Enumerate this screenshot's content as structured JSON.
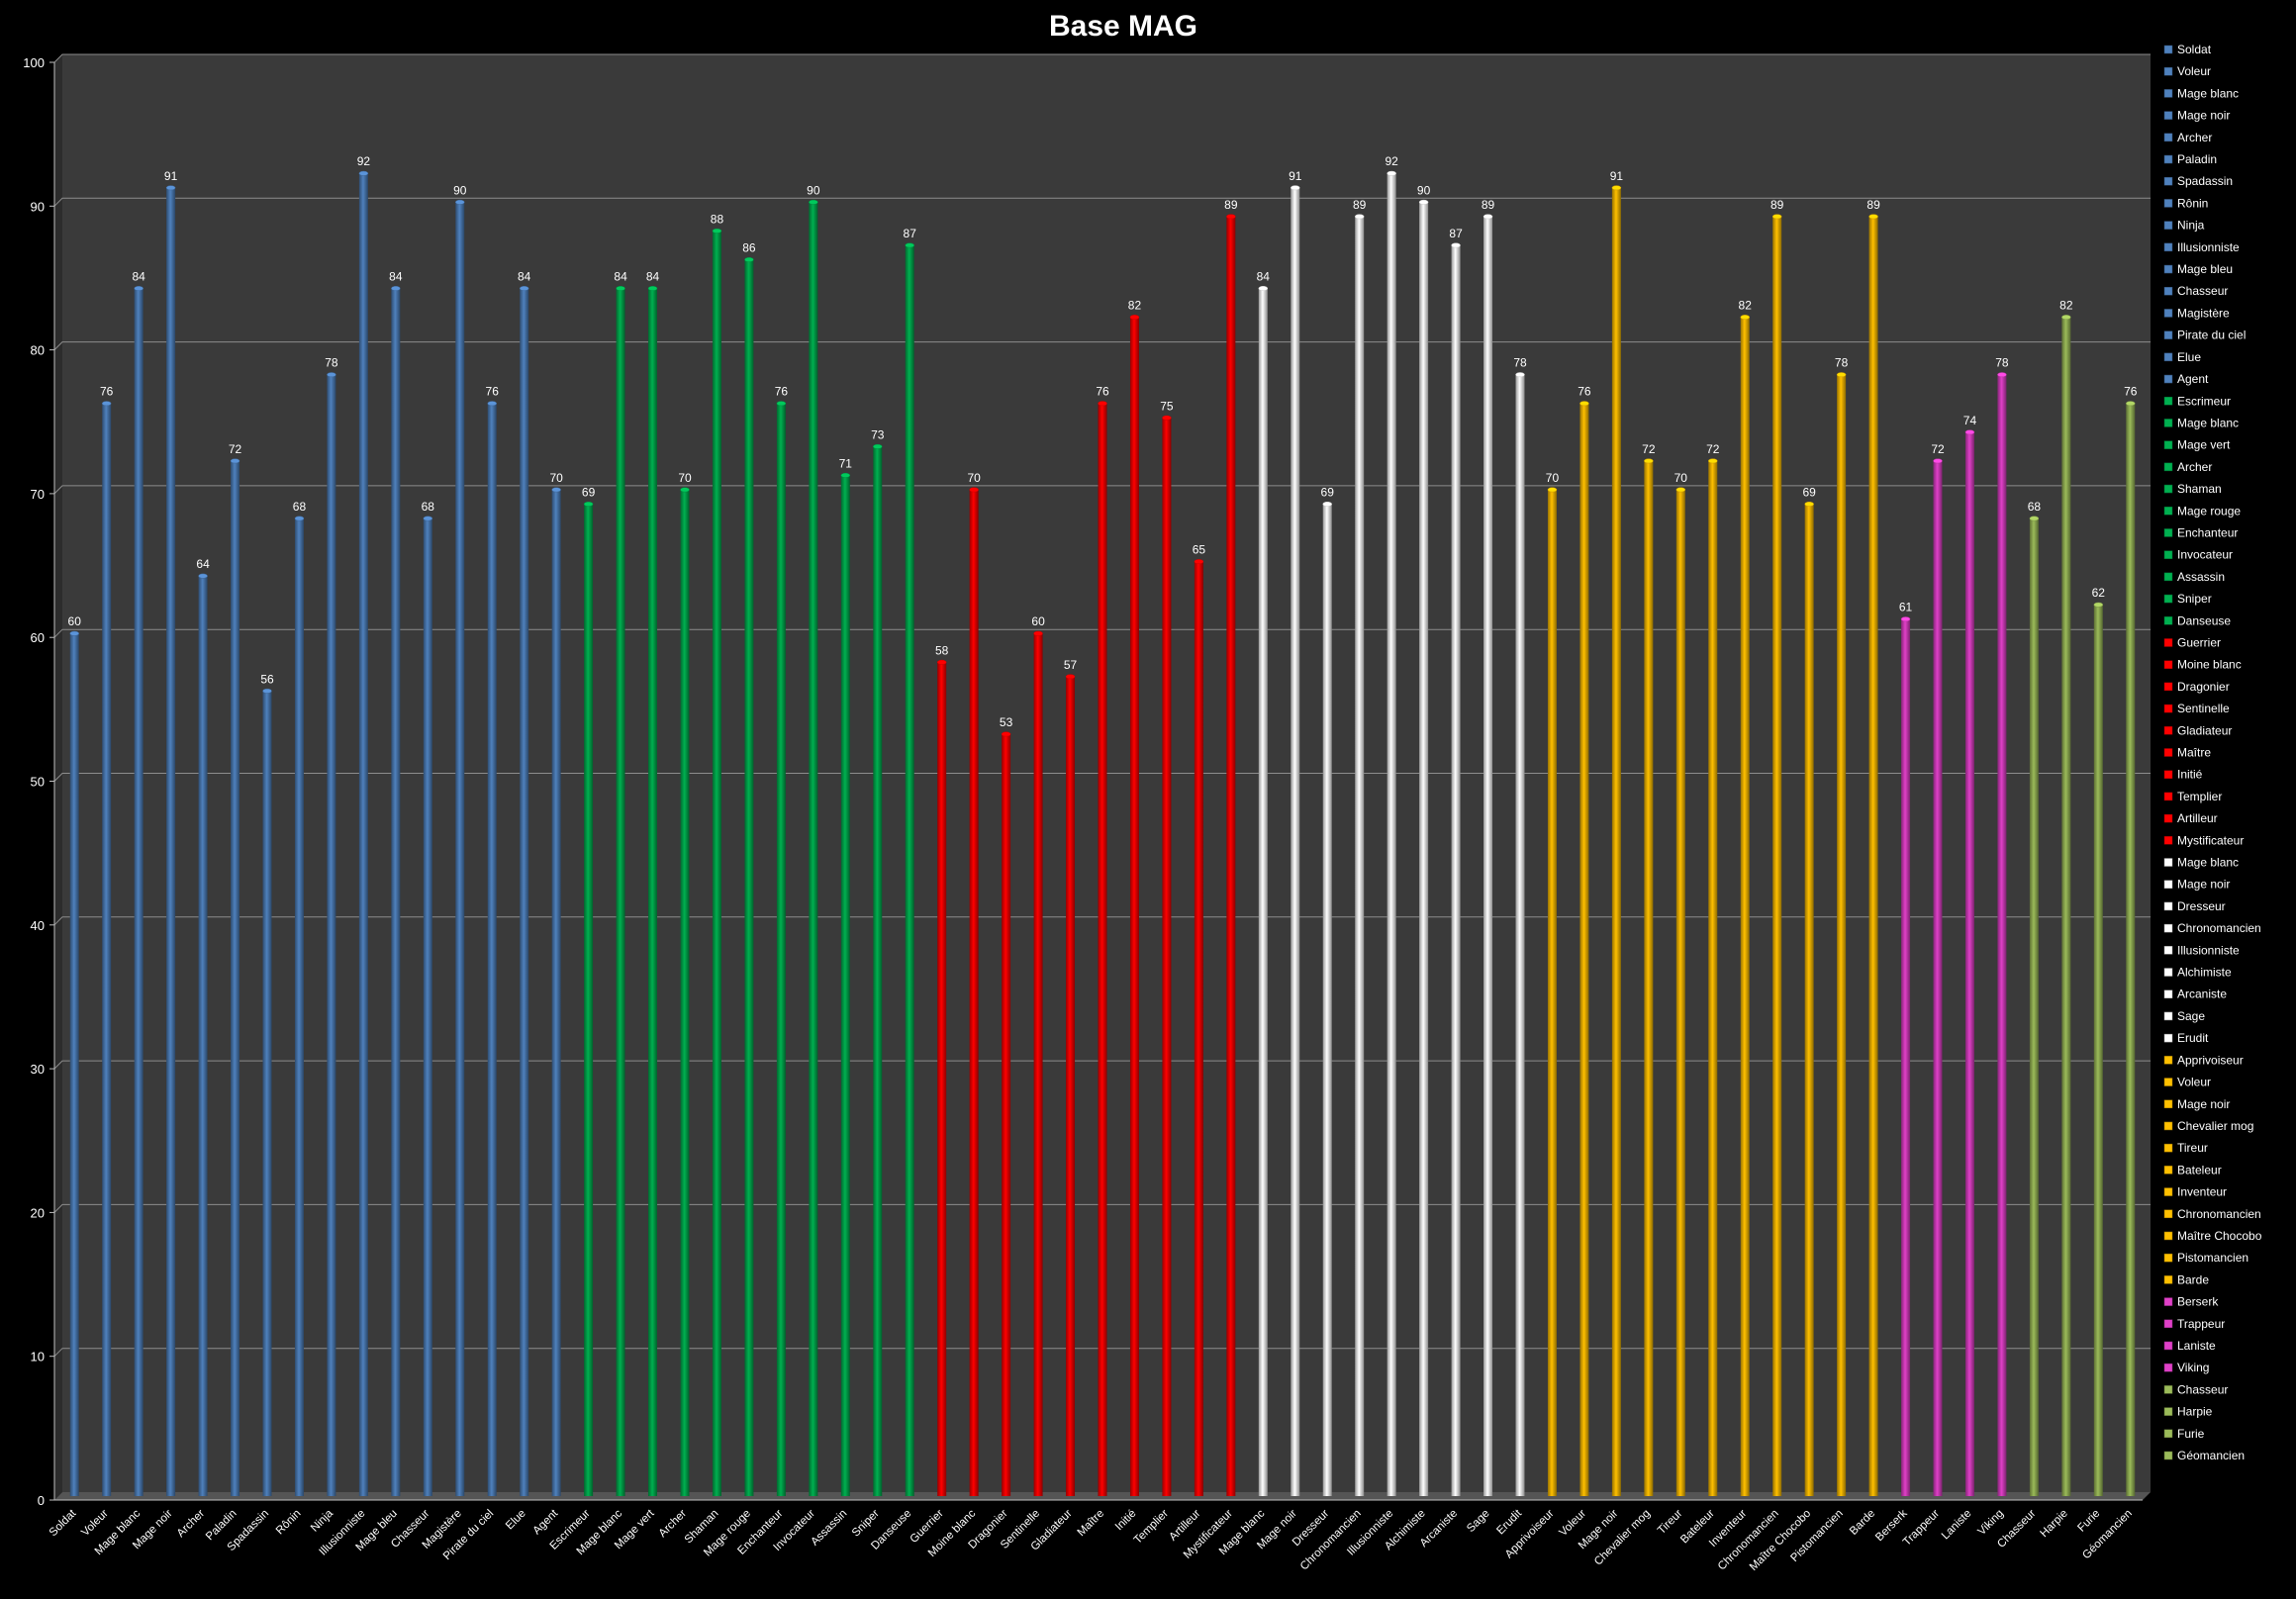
{
  "chart_data": {
    "type": "bar",
    "title": "Base MAG",
    "xlabel": "",
    "ylabel": "",
    "ylim": [
      0,
      100
    ],
    "yticks": [
      0,
      10,
      20,
      30,
      40,
      50,
      60,
      70,
      80,
      90,
      100
    ],
    "grid": true,
    "legend_position": "right",
    "background": "#3a3a3a",
    "groups": [
      {
        "color": "#4f81bd",
        "items": [
          {
            "label": "Soldat",
            "value": 60
          },
          {
            "label": "Voleur",
            "value": 76
          },
          {
            "label": "Mage blanc",
            "value": 84
          },
          {
            "label": "Mage noir",
            "value": 91
          },
          {
            "label": "Archer",
            "value": 64
          },
          {
            "label": "Paladin",
            "value": 72
          },
          {
            "label": "Spadassin",
            "value": 56
          },
          {
            "label": "Rônin",
            "value": 68
          },
          {
            "label": "Ninja",
            "value": 78
          },
          {
            "label": "Illusionniste",
            "value": 92
          },
          {
            "label": "Mage bleu",
            "value": 84
          },
          {
            "label": "Chasseur",
            "value": 68
          },
          {
            "label": "Magistère",
            "value": 90
          },
          {
            "label": "Pirate du ciel",
            "value": 76
          },
          {
            "label": "Elue",
            "value": 84
          },
          {
            "label": "Agent",
            "value": 70
          }
        ]
      },
      {
        "color": "#00b050",
        "items": [
          {
            "label": "Escrimeur",
            "value": 69
          },
          {
            "label": "Mage blanc",
            "value": 84
          },
          {
            "label": "Mage vert",
            "value": 84
          },
          {
            "label": "Archer",
            "value": 70
          },
          {
            "label": "Shaman",
            "value": 88
          },
          {
            "label": "Mage rouge",
            "value": 86
          },
          {
            "label": "Enchanteur",
            "value": 76
          },
          {
            "label": "Invocateur",
            "value": 90
          },
          {
            "label": "Assassin",
            "value": 71
          },
          {
            "label": "Sniper",
            "value": 73
          },
          {
            "label": "Danseuse",
            "value": 87
          }
        ]
      },
      {
        "color": "#ff0000",
        "items": [
          {
            "label": "Guerrier",
            "value": 58
          },
          {
            "label": "Moine blanc",
            "value": 70
          },
          {
            "label": "Dragonier",
            "value": 53
          },
          {
            "label": "Sentinelle",
            "value": 60
          },
          {
            "label": "Gladiateur",
            "value": 57
          },
          {
            "label": "Maître",
            "value": 76
          },
          {
            "label": "Initié",
            "value": 82
          },
          {
            "label": "Templier",
            "value": 75
          },
          {
            "label": "Artilleur",
            "value": 65
          },
          {
            "label": "Mystificateur",
            "value": 89
          }
        ]
      },
      {
        "color": "#ffffff",
        "items": [
          {
            "label": "Mage blanc",
            "value": 84
          },
          {
            "label": "Mage noir",
            "value": 91
          },
          {
            "label": "Dresseur",
            "value": 69
          },
          {
            "label": "Chronomancien",
            "value": 89
          },
          {
            "label": "Illusionniste",
            "value": 92
          },
          {
            "label": "Alchimiste",
            "value": 90
          },
          {
            "label": "Arcaniste",
            "value": 87
          },
          {
            "label": "Sage",
            "value": 89
          },
          {
            "label": "Erudit",
            "value": 78
          }
        ]
      },
      {
        "color": "#ffc000",
        "items": [
          {
            "label": "Apprivoiseur",
            "value": 70
          },
          {
            "label": "Voleur",
            "value": 76
          },
          {
            "label": "Mage noir",
            "value": 91
          },
          {
            "label": "Chevalier mog",
            "value": 72
          },
          {
            "label": "Tireur",
            "value": 70
          },
          {
            "label": "Bateleur",
            "value": 72
          },
          {
            "label": "Inventeur",
            "value": 82
          },
          {
            "label": "Chronomancien",
            "value": 89
          },
          {
            "label": "Maître Chocobo",
            "value": 69
          },
          {
            "label": "Pistomancien",
            "value": 78
          },
          {
            "label": "Barde",
            "value": 89
          }
        ]
      },
      {
        "color": "#e040c8",
        "items": [
          {
            "label": "Berserk",
            "value": 61
          },
          {
            "label": "Trappeur",
            "value": 72
          },
          {
            "label": "Laniste",
            "value": 74
          },
          {
            "label": "Viking",
            "value": 78
          }
        ]
      },
      {
        "color": "#9bbb59",
        "items": [
          {
            "label": "Chasseur",
            "value": 68
          },
          {
            "label": "Harpie",
            "value": 82
          },
          {
            "label": "Furie",
            "value": 62
          },
          {
            "label": "Géomancien",
            "value": 76
          }
        ]
      }
    ]
  }
}
